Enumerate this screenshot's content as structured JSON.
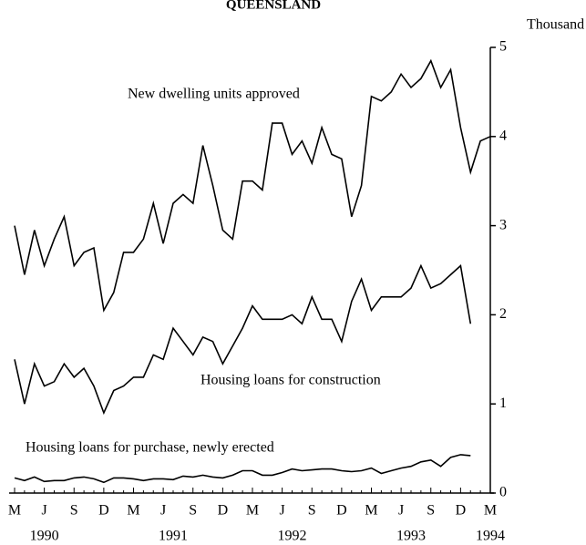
{
  "chart_data": {
    "type": "line",
    "title": "QUEENSLAND",
    "y_axis_label": "Thousand",
    "categories": [
      "M",
      null,
      null,
      "J",
      null,
      null,
      "S",
      null,
      null,
      "D",
      null,
      null,
      "M",
      null,
      null,
      "J",
      null,
      null,
      "S",
      null,
      null,
      "D",
      null,
      null,
      "M",
      null,
      null,
      "J",
      null,
      null,
      "S",
      null,
      null,
      "D",
      null,
      null,
      "M",
      null,
      null,
      "J",
      null,
      null,
      "S",
      null,
      null,
      "D",
      null,
      null,
      "M"
    ],
    "year_labels": [
      "1990",
      "1991",
      "1992",
      "1993",
      "1994"
    ],
    "series": [
      {
        "name": "New dwelling units approved",
        "color": "#000000",
        "values": [
          3.0,
          2.45,
          2.95,
          2.55,
          2.85,
          3.1,
          2.55,
          2.7,
          2.75,
          2.05,
          2.25,
          2.7,
          2.7,
          2.85,
          3.25,
          2.8,
          3.25,
          3.35,
          3.25,
          3.9,
          3.45,
          2.95,
          2.85,
          3.5,
          3.5,
          3.4,
          4.15,
          4.15,
          3.8,
          3.95,
          3.7,
          4.1,
          3.8,
          3.75,
          3.1,
          3.45,
          4.45,
          4.4,
          4.5,
          4.7,
          4.55,
          4.65,
          4.85,
          4.55,
          4.75,
          4.1,
          3.6,
          3.95,
          4.0
        ]
      },
      {
        "name": "Housing loans for construction",
        "color": "#000000",
        "values": [
          1.5,
          1.0,
          1.45,
          1.2,
          1.25,
          1.45,
          1.3,
          1.4,
          1.2,
          0.9,
          1.15,
          1.2,
          1.3,
          1.3,
          1.55,
          1.5,
          1.85,
          1.7,
          1.55,
          1.75,
          1.7,
          1.45,
          1.65,
          1.85,
          2.1,
          1.95,
          1.95,
          1.95,
          2.0,
          1.9,
          2.2,
          1.95,
          1.95,
          1.7,
          2.15,
          2.4,
          2.05,
          2.2,
          2.2,
          2.2,
          2.3,
          2.55,
          2.3,
          2.35,
          2.45,
          2.55,
          1.9,
          null,
          null
        ]
      },
      {
        "name": "Housing loans for purchase, newly erected",
        "color": "#000000",
        "values": [
          0.17,
          0.14,
          0.18,
          0.13,
          0.14,
          0.14,
          0.17,
          0.18,
          0.16,
          0.12,
          0.17,
          0.17,
          0.16,
          0.14,
          0.16,
          0.16,
          0.15,
          0.19,
          0.18,
          0.2,
          0.18,
          0.17,
          0.2,
          0.25,
          0.25,
          0.2,
          0.2,
          0.23,
          0.27,
          0.25,
          0.26,
          0.27,
          0.27,
          0.25,
          0.24,
          0.25,
          0.28,
          0.22,
          0.25,
          0.28,
          0.3,
          0.35,
          0.37,
          0.3,
          0.4,
          0.43,
          0.42,
          null,
          null
        ]
      }
    ],
    "ylim": [
      0,
      5
    ],
    "yticks": [
      0,
      1,
      2,
      3,
      4,
      5
    ]
  }
}
